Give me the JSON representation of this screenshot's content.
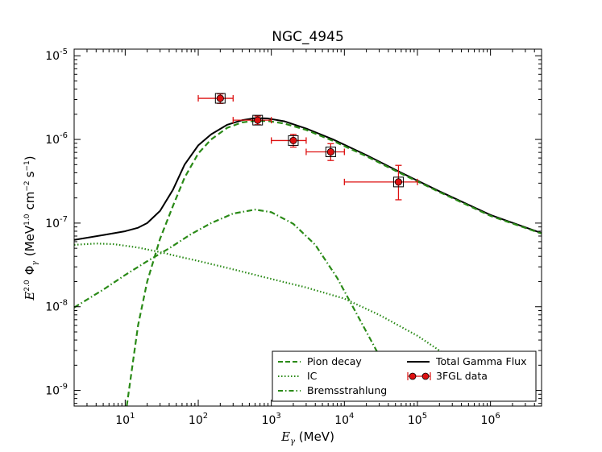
{
  "chart_data": {
    "type": "line",
    "title": "NGC_4945",
    "xlabel": {
      "symbol": "E",
      "sub": "γ",
      "unit": " (MeV)"
    },
    "ylabel": {
      "symbol": "E",
      "sup": "2.0",
      "phi": "Φ",
      "phi_sub": "γ",
      "unit_pre": "(MeV",
      "unit_sup1": "1.0",
      "unit_mid": "cm",
      "unit_sup2": "−2",
      "unit_s": "s",
      "unit_sup3": "−1",
      "unit_post": ")"
    },
    "xscale": "log",
    "yscale": "log",
    "xlim": [
      2,
      5000000
    ],
    "ylim": [
      6.5e-10,
      1.2e-05
    ],
    "x_ticks": [
      {
        "value": 10,
        "base": "10",
        "exp": "1"
      },
      {
        "value": 100,
        "base": "10",
        "exp": "2"
      },
      {
        "value": 1000,
        "base": "10",
        "exp": "3"
      },
      {
        "value": 10000,
        "base": "10",
        "exp": "4"
      },
      {
        "value": 100000,
        "base": "10",
        "exp": "5"
      },
      {
        "value": 1000000,
        "base": "10",
        "exp": "6"
      }
    ],
    "y_ticks": [
      {
        "value": 1e-09,
        "base": "10",
        "exp": "-9"
      },
      {
        "value": 1e-08,
        "base": "10",
        "exp": "-8"
      },
      {
        "value": 1e-07,
        "base": "10",
        "exp": "-7"
      },
      {
        "value": 1e-06,
        "base": "10",
        "exp": "-6"
      },
      {
        "value": 1e-05,
        "base": "10",
        "exp": "-5"
      }
    ],
    "series": [
      {
        "name": "Total Gamma Flux",
        "style": "solid",
        "color": "#000000",
        "x": [
          2,
          5,
          10,
          15,
          20,
          30,
          45,
          65,
          100,
          150,
          250,
          400,
          600,
          900,
          1500,
          3000,
          7000,
          20000,
          60000,
          200000,
          1000000,
          5000000
        ],
        "y": [
          6.3e-08,
          7.2e-08,
          8e-08,
          8.8e-08,
          1e-07,
          1.4e-07,
          2.5e-07,
          5e-07,
          8.5e-07,
          1.15e-06,
          1.5e-06,
          1.7e-06,
          1.8e-06,
          1.78e-06,
          1.65e-06,
          1.35e-06,
          1e-06,
          6.5e-07,
          4e-07,
          2.4e-07,
          1.25e-07,
          7.6e-08
        ]
      },
      {
        "name": "Pion decay",
        "style": "dashed",
        "color": "#2a8a17",
        "x": [
          10.5,
          15,
          20,
          30,
          45,
          65,
          100,
          150,
          250,
          400,
          600,
          900,
          1500,
          3000,
          7000,
          20000,
          60000,
          200000,
          1000000,
          5000000
        ],
        "y": [
          6.5e-10,
          6e-09,
          2e-08,
          6.5e-08,
          1.6e-07,
          3.5e-07,
          6.8e-07,
          1e-06,
          1.38e-06,
          1.6e-06,
          1.67e-06,
          1.66e-06,
          1.55e-06,
          1.3e-06,
          9.6e-07,
          6.3e-07,
          3.9e-07,
          2.35e-07,
          1.22e-07,
          7.5e-08
        ]
      },
      {
        "name": "IC",
        "style": "dotted",
        "color": "#2a8a17",
        "x": [
          2,
          4,
          7,
          15,
          30,
          60,
          120,
          300,
          1000,
          3000,
          10000,
          30000,
          100000,
          200000,
          400000,
          700000,
          1000000
        ],
        "y": [
          5.5e-08,
          5.7e-08,
          5.6e-08,
          5.1e-08,
          4.5e-08,
          3.9e-08,
          3.4e-08,
          2.8e-08,
          2.15e-08,
          1.7e-08,
          1.25e-08,
          8e-09,
          4.5e-09,
          3e-09,
          1.9e-09,
          1.2e-09,
          8.5e-10
        ]
      },
      {
        "name": "Bremsstrahlung",
        "style": "dashdot",
        "color": "#2a8a17",
        "x": [
          2,
          5,
          10,
          20,
          40,
          80,
          150,
          300,
          600,
          1000,
          2000,
          4000,
          8000,
          15000,
          30000,
          55000
        ],
        "y": [
          9.8e-09,
          1.6e-08,
          2.4e-08,
          3.5e-08,
          5e-08,
          7.4e-08,
          1e-07,
          1.3e-07,
          1.45e-07,
          1.35e-07,
          9.8e-08,
          5.5e-08,
          2.2e-08,
          8e-09,
          2.6e-09,
          1e-09
        ]
      }
    ],
    "data_points": {
      "name": "3FGL data",
      "color": "#dd1111",
      "points": [
        {
          "x": 200,
          "y": 3.1e-06,
          "xlo": 100,
          "xhi": 300,
          "ylo": 2.7e-06,
          "yhi": 3.5e-06
        },
        {
          "x": 650,
          "y": 1.7e-06,
          "xlo": 300,
          "xhi": 1000,
          "ylo": 1.5e-06,
          "yhi": 1.9e-06
        },
        {
          "x": 2000,
          "y": 9.7e-07,
          "xlo": 1000,
          "xhi": 3000,
          "ylo": 8.1e-07,
          "yhi": 1.15e-06
        },
        {
          "x": 6500,
          "y": 7.1e-07,
          "xlo": 3000,
          "xhi": 10000,
          "ylo": 5.6e-07,
          "yhi": 8.9e-07
        },
        {
          "x": 55000,
          "y": 3.1e-07,
          "xlo": 10000,
          "xhi": 100000,
          "ylo": 1.9e-07,
          "yhi": 4.9e-07
        }
      ]
    },
    "legend": {
      "placement": "lower-right",
      "entries": [
        "Pion decay",
        "IC",
        "Bremsstrahlung",
        "Total Gamma Flux",
        "3FGL data"
      ]
    }
  }
}
